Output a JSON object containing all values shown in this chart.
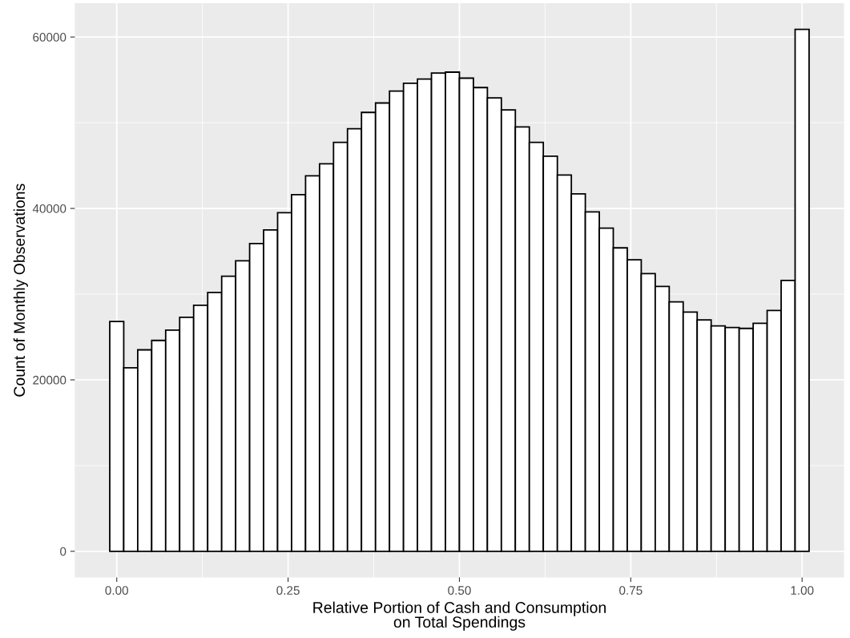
{
  "chart_data": {
    "type": "histogram",
    "xlabel": "Relative Portion of Cash and Consumption\non Total Spendings",
    "ylabel": "Count of Monthly Observations",
    "bins": [
      -0.0102,
      0.0102,
      0.0306,
      0.051,
      0.0714,
      0.0918,
      0.1122,
      0.1327,
      0.1531,
      0.1735,
      0.1939,
      0.2143,
      0.2347,
      0.2551,
      0.2755,
      0.2959,
      0.3163,
      0.3367,
      0.3571,
      0.3776,
      0.398,
      0.4184,
      0.4388,
      0.4592,
      0.4796,
      0.5,
      0.5204,
      0.5408,
      0.5612,
      0.5816,
      0.602,
      0.6224,
      0.6429,
      0.6633,
      0.6837,
      0.7041,
      0.7245,
      0.7449,
      0.7653,
      0.7857,
      0.8061,
      0.8265,
      0.8469,
      0.8673,
      0.8878,
      0.9082,
      0.9286,
      0.949,
      0.9694,
      0.9898,
      1.0102
    ],
    "values": [
      26800,
      21400,
      23500,
      24600,
      25800,
      27300,
      28700,
      30200,
      32100,
      33900,
      35900,
      37500,
      39500,
      41600,
      43800,
      45200,
      47700,
      49300,
      51200,
      52300,
      53700,
      54600,
      55100,
      55800,
      55900,
      55200,
      54100,
      52900,
      51500,
      49500,
      47700,
      46100,
      43900,
      41700,
      39600,
      37700,
      35400,
      34000,
      32400,
      30900,
      29100,
      27900,
      27000,
      26300,
      26100,
      26000,
      26600,
      28100,
      31600,
      60900
    ],
    "color": "#ffffff",
    "xlim": [
      -0.0612,
      1.0612
    ],
    "ylim": [
      -3045,
      63945
    ],
    "xticks": [
      {
        "value": 0,
        "label": "0.00"
      },
      {
        "value": 0.25,
        "label": "0.25"
      },
      {
        "value": 0.5,
        "label": "0.50"
      },
      {
        "value": 0.75,
        "label": "0.75"
      },
      {
        "value": 1,
        "label": "1.00"
      }
    ],
    "yticks": [
      0,
      20000,
      40000,
      60000
    ],
    "grid": true
  }
}
